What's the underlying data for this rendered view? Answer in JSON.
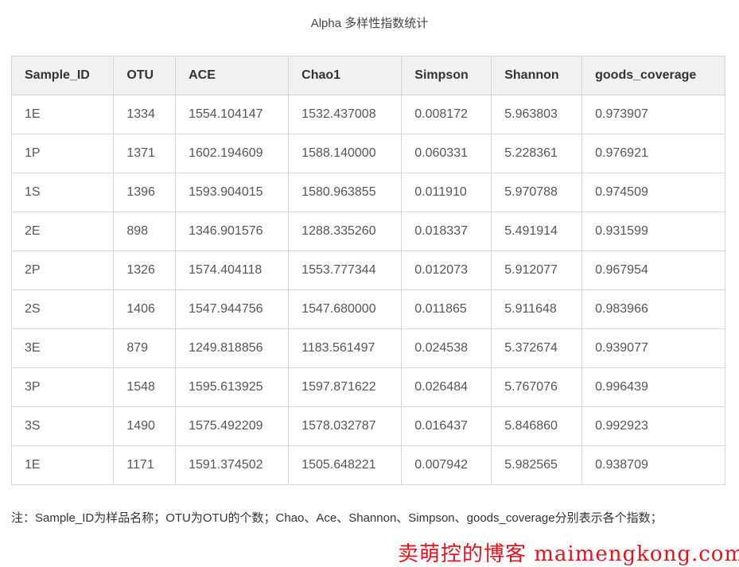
{
  "title": "Alpha 多样性指数统计",
  "columns": [
    "Sample_ID",
    "OTU",
    "ACE",
    "Chao1",
    "Simpson",
    "Shannon",
    "goods_coverage"
  ],
  "rows": [
    [
      "1E",
      "1334",
      "1554.104147",
      "1532.437008",
      "0.008172",
      "5.963803",
      "0.973907"
    ],
    [
      "1P",
      "1371",
      "1602.194609",
      "1588.140000",
      "0.060331",
      "5.228361",
      "0.976921"
    ],
    [
      "1S",
      "1396",
      "1593.904015",
      "1580.963855",
      "0.011910",
      "5.970788",
      "0.974509"
    ],
    [
      "2E",
      "898",
      "1346.901576",
      "1288.335260",
      "0.018337",
      "5.491914",
      "0.931599"
    ],
    [
      "2P",
      "1326",
      "1574.404118",
      "1553.777344",
      "0.012073",
      "5.912077",
      "0.967954"
    ],
    [
      "2S",
      "1406",
      "1547.944756",
      "1547.680000",
      "0.011865",
      "5.911648",
      "0.983966"
    ],
    [
      "3E",
      "879",
      "1249.818856",
      "1183.561497",
      "0.024538",
      "5.372674",
      "0.939077"
    ],
    [
      "3P",
      "1548",
      "1595.613925",
      "1597.871622",
      "0.026484",
      "5.767076",
      "0.996439"
    ],
    [
      "3S",
      "1490",
      "1575.492209",
      "1578.032787",
      "0.016437",
      "5.846860",
      "0.992923"
    ],
    [
      "1E",
      "1171",
      "1591.374502",
      "1505.648221",
      "0.007942",
      "5.982565",
      "0.938709"
    ]
  ],
  "note": "注：Sample_ID为样品名称；OTU为OTU的个数；Chao、Ace、Shannon、Simpson、goods_coverage分别表示各个指数；",
  "watermark": "卖萌控的博客  maimengkong.com",
  "colors": {
    "header_bg": "#f1f1f1",
    "border": "#d6d6d6",
    "watermark": "#e0141e"
  }
}
